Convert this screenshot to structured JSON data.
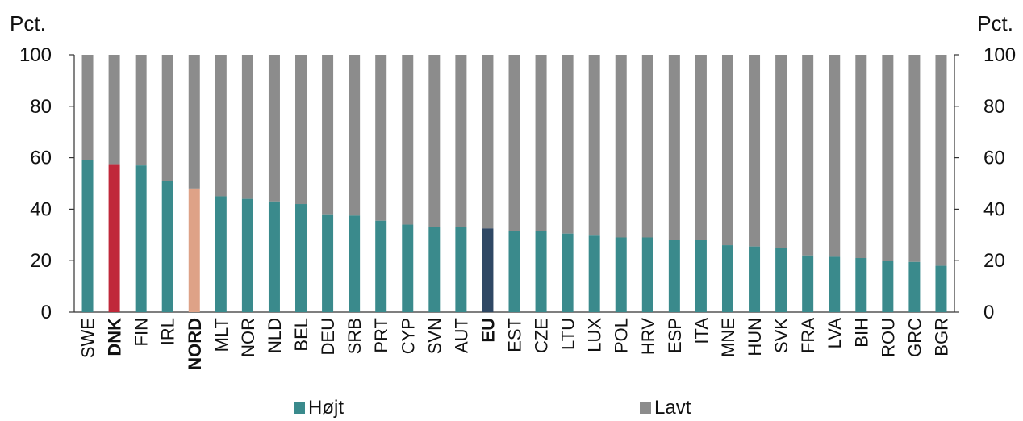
{
  "chart_data": {
    "type": "bar",
    "stacked": true,
    "unit_left": "Pct.",
    "unit_right": "Pct.",
    "ylim": [
      0,
      100
    ],
    "yticks": [
      0,
      20,
      40,
      60,
      80,
      100
    ],
    "categories": [
      "SWE",
      "DNK",
      "FIN",
      "IRL",
      "NORD",
      "MLT",
      "NOR",
      "NLD",
      "BEL",
      "DEU",
      "SRB",
      "PRT",
      "CYP",
      "SVN",
      "AUT",
      "EU",
      "EST",
      "CZE",
      "LTU",
      "LUX",
      "POL",
      "HRV",
      "ESP",
      "ITA",
      "MNE",
      "HUN",
      "SVK",
      "FRA",
      "LVA",
      "BIH",
      "ROU",
      "GRC",
      "BGR"
    ],
    "bold_categories": [
      "DNK",
      "NORD",
      "EU"
    ],
    "series": [
      {
        "name": "Højt",
        "color": "#3a8a8c",
        "values": [
          59,
          57.5,
          57,
          51,
          48,
          45,
          44,
          43,
          42,
          38,
          37.5,
          35.5,
          34,
          33,
          33,
          32.5,
          31.5,
          31.5,
          30.5,
          30,
          29,
          29,
          28,
          28,
          26,
          25.5,
          25,
          22,
          21.5,
          21,
          20,
          19.5,
          18
        ],
        "highlight_colors": {
          "DNK": "#c0283a",
          "NORD": "#dea287",
          "EU": "#2f4864"
        }
      },
      {
        "name": "Lavt",
        "color": "#8c8c8c",
        "values": [
          41,
          42.5,
          43,
          49,
          52,
          55,
          56,
          57,
          58,
          62,
          62.5,
          64.5,
          66,
          67,
          67,
          67.5,
          68.5,
          68.5,
          69.5,
          70,
          71,
          71,
          72,
          72,
          74,
          74.5,
          75,
          78,
          78.5,
          79,
          80,
          80.5,
          82
        ]
      }
    ],
    "legend": [
      {
        "label": "Højt",
        "color": "#3a8a8c"
      },
      {
        "label": "Lavt",
        "color": "#8c8c8c"
      }
    ],
    "grid": false
  }
}
